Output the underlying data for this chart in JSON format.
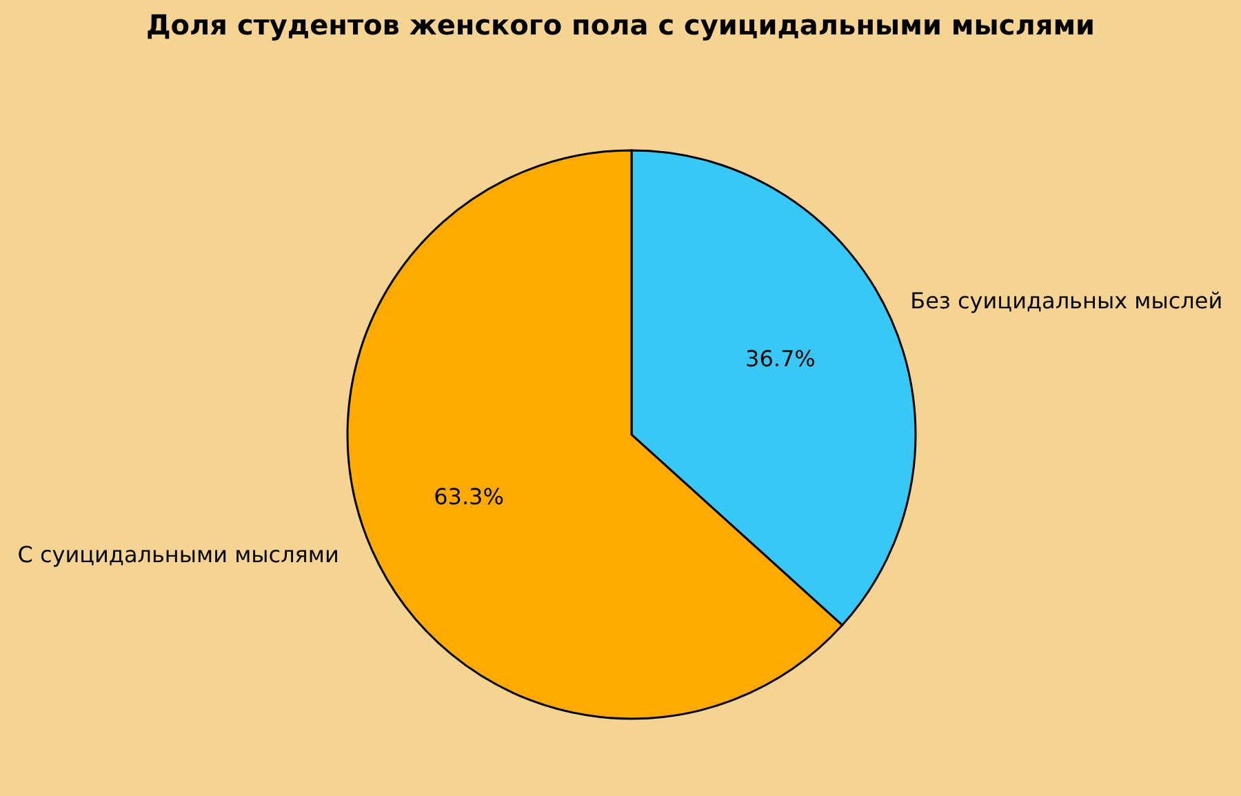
{
  "chart_data": {
    "type": "pie",
    "title": "Доля студентов женского пола с суицидальными мыслями",
    "categories": [
      "Без суицидальных мыслей",
      "С суицидальными мыслями"
    ],
    "values": [
      36.7,
      63.3
    ],
    "value_labels": [
      "36.7%",
      "63.3%"
    ],
    "colors": [
      "#38c8f6",
      "#ffaa00"
    ],
    "legend": false
  }
}
